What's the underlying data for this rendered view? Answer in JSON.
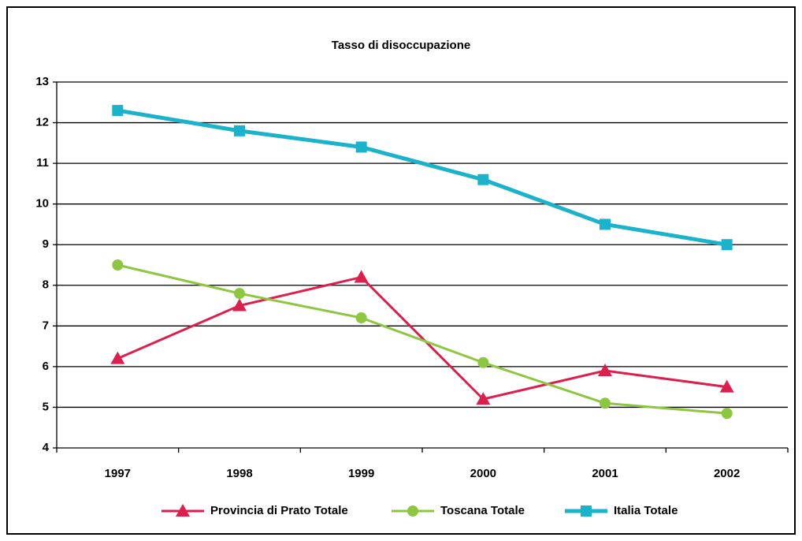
{
  "chart_data": {
    "type": "line",
    "title": "Tasso di disoccupazione",
    "categories": [
      "1997",
      "1998",
      "1999",
      "2000",
      "2001",
      "2002"
    ],
    "series": [
      {
        "name": "Provincia di Prato Totale",
        "color": "#dc1f4c",
        "marker": "triangle",
        "values": [
          6.2,
          7.5,
          8.2,
          5.2,
          5.9,
          5.5
        ]
      },
      {
        "name": "Toscana Totale",
        "color": "#8dc63f",
        "marker": "circle",
        "values": [
          8.5,
          7.8,
          7.2,
          6.1,
          5.1,
          4.85
        ]
      },
      {
        "name": "Italia Totale",
        "color": "#1ab3cb",
        "marker": "square",
        "values": [
          12.3,
          11.8,
          11.4,
          10.6,
          9.5,
          9.0
        ]
      }
    ],
    "ylim": [
      4,
      13
    ],
    "yticks": [
      4,
      5,
      6,
      7,
      8,
      9,
      10,
      11,
      12,
      13
    ],
    "grid": true,
    "legend": "bottom"
  }
}
